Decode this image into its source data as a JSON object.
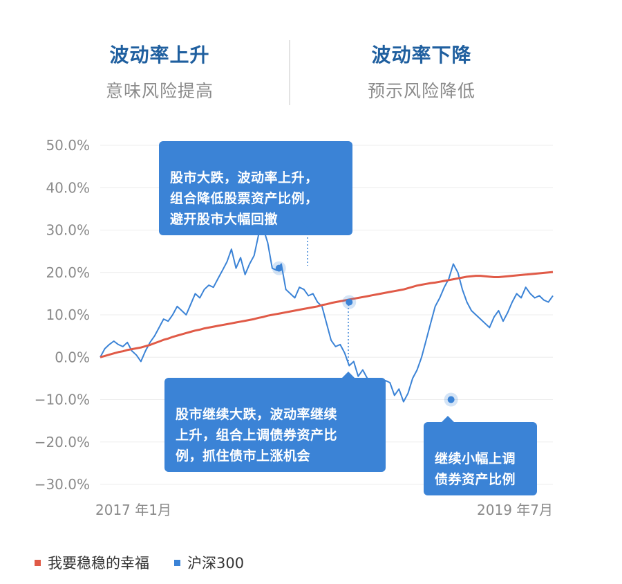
{
  "header": {
    "left": {
      "title": "波动率上升",
      "subtitle": "意味风险提高"
    },
    "right": {
      "title": "波动率下降",
      "subtitle": "预示风险降低"
    }
  },
  "callouts": [
    {
      "text": "股市大跌，波动率上升，\n组合降低股票资产比例，\n避开股市大幅回撤"
    },
    {
      "text": "股市继续大跌，波动率继续\n上升，组合上调债券资产比\n例，抓住债市上涨机会"
    },
    {
      "text": "继续小幅上调\n债券资产比例"
    }
  ],
  "legend": [
    {
      "label": "我要稳稳的幸福",
      "color": "#e05a47"
    },
    {
      "label": "沪深300",
      "color": "#3b83d6"
    }
  ],
  "chart_data": {
    "type": "line",
    "x_start_label": "2017 年1月",
    "x_end_label": "2019 年7月",
    "y_tick_labels": [
      "50.0%",
      "40.0%",
      "30.0%",
      "20.0%",
      "10.0%",
      "0.0%",
      "−10.0%",
      "−20.0%",
      "−30.0%"
    ],
    "ylim": [
      -30,
      50
    ],
    "x": [
      0,
      1,
      2,
      3,
      4,
      5,
      6,
      7,
      8,
      9,
      10,
      11,
      12,
      13,
      14,
      15,
      16,
      17,
      18,
      19,
      20,
      21,
      22,
      23,
      24,
      25,
      26,
      27,
      28,
      29,
      30,
      31,
      32,
      33,
      34,
      35,
      36,
      37,
      38,
      39,
      40,
      41,
      42,
      43,
      44,
      45,
      46,
      47,
      48,
      49,
      50,
      51,
      52,
      53,
      54,
      55,
      56,
      57,
      58,
      59,
      60,
      61,
      62,
      63,
      64,
      65,
      66,
      67,
      68,
      69,
      70,
      71,
      72,
      73,
      74,
      75,
      76,
      77,
      78,
      79,
      80,
      81,
      82,
      83,
      84,
      85,
      86,
      87,
      88,
      89,
      90,
      91,
      92,
      93,
      94,
      95,
      96,
      97,
      98,
      99,
      100
    ],
    "series": [
      {
        "name": "我要稳稳的幸福",
        "color": "#e05a47",
        "values": [
          0,
          0.3,
          0.6,
          0.9,
          1.2,
          1.4,
          1.7,
          1.9,
          2.1,
          2.3,
          2.6,
          2.9,
          3.3,
          3.7,
          4.1,
          4.4,
          4.8,
          5.1,
          5.4,
          5.7,
          6.0,
          6.3,
          6.5,
          6.8,
          7.0,
          7.2,
          7.4,
          7.6,
          7.8,
          8.0,
          8.2,
          8.4,
          8.6,
          8.8,
          9.0,
          9.3,
          9.5,
          9.8,
          10.0,
          10.2,
          10.4,
          10.6,
          10.8,
          11.0,
          11.2,
          11.4,
          11.6,
          11.8,
          12.0,
          12.3,
          12.5,
          12.8,
          13.0,
          13.2,
          13.4,
          13.6,
          13.8,
          14.0,
          14.2,
          14.4,
          14.6,
          14.8,
          15.0,
          15.2,
          15.4,
          15.6,
          15.8,
          16.0,
          16.3,
          16.6,
          16.9,
          17.1,
          17.3,
          17.5,
          17.6,
          17.8,
          18.0,
          18.2,
          18.4,
          18.6,
          18.8,
          19.0,
          19.1,
          19.2,
          19.2,
          19.1,
          19.0,
          18.9,
          18.9,
          19.0,
          19.1,
          19.2,
          19.3,
          19.4,
          19.5,
          19.6,
          19.7,
          19.8,
          19.9,
          20.0,
          20.1
        ]
      },
      {
        "name": "沪深300",
        "color": "#3b83d6",
        "values": [
          0,
          2.0,
          3.0,
          3.8,
          3.0,
          2.5,
          3.5,
          1.5,
          0.5,
          -1.0,
          1.5,
          3.5,
          5.0,
          7.0,
          9.0,
          8.5,
          10.0,
          12.0,
          11.0,
          10.0,
          12.5,
          15.0,
          14.0,
          16.0,
          17.0,
          16.5,
          18.5,
          20.5,
          22.5,
          25.5,
          21.0,
          23.5,
          19.5,
          22.0,
          24.0,
          29.0,
          30.5,
          27.0,
          21.0,
          20.5,
          22.0,
          16.0,
          15.0,
          14.0,
          16.5,
          16.0,
          14.5,
          15.0,
          13.0,
          12.0,
          8.0,
          4.0,
          2.5,
          3.0,
          1.0,
          -2.0,
          -1.0,
          -4.5,
          -3.0,
          -5.0,
          -6.5,
          -8.0,
          -7.0,
          -5.5,
          -6.0,
          -9.0,
          -7.5,
          -10.5,
          -8.5,
          -5.0,
          -3.0,
          0.0,
          4.0,
          8.0,
          12.0,
          14.0,
          16.5,
          18.5,
          22.0,
          20.0,
          16.0,
          13.0,
          11.0,
          10.0,
          9.0,
          8.0,
          7.0,
          9.5,
          11.0,
          8.5,
          10.5,
          13.0,
          15.0,
          14.0,
          16.5,
          15.0,
          14.0,
          14.5,
          13.5,
          13.0,
          14.5
        ]
      }
    ],
    "markers": [
      {
        "series": 1,
        "x": 39.5,
        "y": 21.0
      },
      {
        "series": 1,
        "x": 55.0,
        "y": 13.0
      },
      {
        "series": 1,
        "x": 77.5,
        "y": -10.0
      }
    ]
  }
}
